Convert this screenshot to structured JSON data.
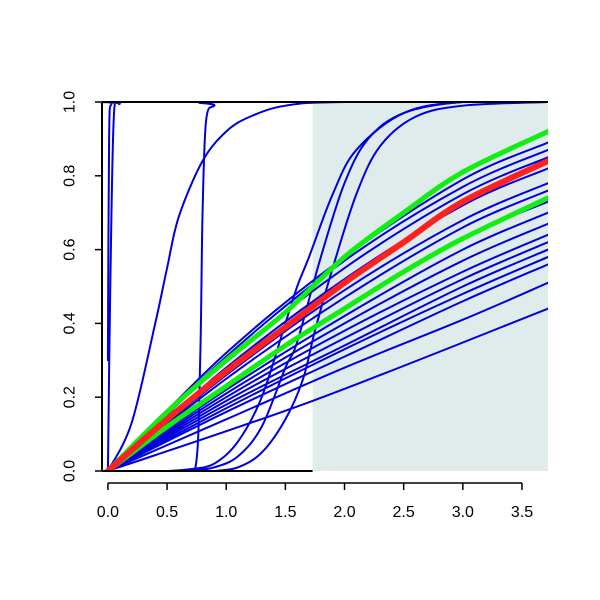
{
  "chart_data": {
    "type": "line",
    "xlim": [
      -0.05,
      3.72
    ],
    "ylim": [
      0,
      1
    ],
    "x_ticks": [
      0.0,
      0.5,
      1.0,
      1.5,
      2.0,
      2.5,
      3.0,
      3.5
    ],
    "x_tick_labels": [
      "0.0",
      "0.5",
      "1.0",
      "1.5",
      "2.0",
      "2.5",
      "3.0",
      "3.5"
    ],
    "y_ticks": [
      0.0,
      0.2,
      0.4,
      0.6,
      0.8,
      1.0
    ],
    "y_tick_labels": [
      "0.0",
      "0.2",
      "0.4",
      "0.6",
      "0.8",
      "1.0"
    ],
    "shaded_region": {
      "x": [
        1.73,
        3.72
      ],
      "y": [
        0,
        1
      ],
      "color": "#e0ecec"
    },
    "grid": false,
    "colors": {
      "simulated": "#0000dd",
      "central": "#ff2020",
      "bounds": "#11ee11"
    },
    "series": [
      {
        "group": "simulated",
        "points": [
          [
            0.0,
            0.3
          ],
          [
            0.01,
            0.9
          ],
          [
            0.03,
            0.995
          ],
          [
            0.1,
            1.0
          ],
          [
            3.72,
            1.0
          ]
        ]
      },
      {
        "group": "simulated",
        "points": [
          [
            0.0,
            0.0
          ],
          [
            0.02,
            0.5
          ],
          [
            0.05,
            0.96
          ],
          [
            0.1,
            0.995
          ],
          [
            0.2,
            1.0
          ],
          [
            3.72,
            1.0
          ]
        ]
      },
      {
        "group": "simulated",
        "points": [
          [
            0.0,
            0.0
          ],
          [
            0.2,
            0.13
          ],
          [
            0.4,
            0.4
          ],
          [
            0.5,
            0.55
          ],
          [
            0.6,
            0.69
          ],
          [
            0.8,
            0.84
          ],
          [
            1.0,
            0.92
          ],
          [
            1.2,
            0.96
          ],
          [
            1.5,
            0.99
          ],
          [
            2.0,
            1.0
          ],
          [
            3.72,
            1.0
          ]
        ]
      },
      {
        "group": "simulated",
        "points": [
          [
            0.6,
            0.0
          ],
          [
            0.74,
            0.01
          ],
          [
            0.78,
            0.3
          ],
          [
            0.8,
            0.7
          ],
          [
            0.83,
            0.95
          ],
          [
            0.9,
            0.99
          ],
          [
            1.0,
            1.0
          ],
          [
            3.72,
            1.0
          ]
        ]
      },
      {
        "group": "simulated",
        "points": [
          [
            0.5,
            0.0
          ],
          [
            0.7,
            0.005
          ],
          [
            0.9,
            0.02
          ],
          [
            1.1,
            0.08
          ],
          [
            1.3,
            0.2
          ],
          [
            1.5,
            0.4
          ],
          [
            1.6,
            0.5
          ],
          [
            1.7,
            0.58
          ],
          [
            1.9,
            0.75
          ],
          [
            2.1,
            0.87
          ],
          [
            2.5,
            0.97
          ],
          [
            3.0,
            1.0
          ],
          [
            3.72,
            1.0
          ]
        ]
      },
      {
        "group": "simulated",
        "points": [
          [
            0.7,
            0.0
          ],
          [
            0.9,
            0.01
          ],
          [
            1.1,
            0.04
          ],
          [
            1.3,
            0.12
          ],
          [
            1.5,
            0.28
          ],
          [
            1.6,
            0.35
          ],
          [
            1.8,
            0.58
          ],
          [
            2.0,
            0.78
          ],
          [
            2.2,
            0.9
          ],
          [
            2.5,
            0.97
          ],
          [
            3.0,
            1.0
          ],
          [
            3.72,
            1.0
          ]
        ]
      },
      {
        "group": "simulated",
        "points": [
          [
            0.9,
            0.0
          ],
          [
            1.1,
            0.01
          ],
          [
            1.3,
            0.05
          ],
          [
            1.5,
            0.14
          ],
          [
            1.65,
            0.25
          ],
          [
            1.75,
            0.38
          ],
          [
            1.9,
            0.55
          ],
          [
            2.1,
            0.75
          ],
          [
            2.3,
            0.88
          ],
          [
            2.6,
            0.96
          ],
          [
            3.0,
            0.99
          ],
          [
            3.72,
            1.0
          ]
        ]
      },
      {
        "group": "simulated",
        "points": [
          [
            0.0,
            0.0
          ],
          [
            1.73,
            0.19
          ],
          [
            3.72,
            0.44
          ]
        ]
      },
      {
        "group": "simulated",
        "points": [
          [
            0.0,
            0.0
          ],
          [
            1.0,
            0.14
          ],
          [
            2.0,
            0.28
          ],
          [
            3.0,
            0.41
          ],
          [
            3.72,
            0.51
          ]
        ]
      },
      {
        "group": "simulated",
        "points": [
          [
            0.0,
            0.0
          ],
          [
            1.0,
            0.16
          ],
          [
            2.0,
            0.31
          ],
          [
            3.0,
            0.46
          ],
          [
            3.72,
            0.56
          ]
        ]
      },
      {
        "group": "simulated",
        "points": [
          [
            0.0,
            0.0
          ],
          [
            1.0,
            0.17
          ],
          [
            2.0,
            0.33
          ],
          [
            3.0,
            0.48
          ],
          [
            3.72,
            0.58
          ]
        ]
      },
      {
        "group": "simulated",
        "points": [
          [
            0.0,
            0.0
          ],
          [
            1.0,
            0.18
          ],
          [
            2.0,
            0.34
          ],
          [
            3.0,
            0.5
          ],
          [
            3.72,
            0.6
          ]
        ]
      },
      {
        "group": "simulated",
        "points": [
          [
            0.0,
            0.0
          ],
          [
            1.0,
            0.19
          ],
          [
            2.0,
            0.36
          ],
          [
            3.0,
            0.52
          ],
          [
            3.72,
            0.62
          ]
        ]
      },
      {
        "group": "simulated",
        "points": [
          [
            0.0,
            0.0
          ],
          [
            1.0,
            0.2
          ],
          [
            2.0,
            0.38
          ],
          [
            3.0,
            0.54
          ],
          [
            3.72,
            0.64
          ]
        ]
      },
      {
        "group": "simulated",
        "points": [
          [
            0.0,
            0.0
          ],
          [
            1.0,
            0.21
          ],
          [
            2.0,
            0.4
          ],
          [
            3.0,
            0.57
          ],
          [
            3.72,
            0.67
          ]
        ]
      },
      {
        "group": "simulated",
        "points": [
          [
            0.0,
            0.0
          ],
          [
            1.0,
            0.22
          ],
          [
            2.0,
            0.42
          ],
          [
            3.0,
            0.6
          ],
          [
            3.72,
            0.7
          ]
        ]
      },
      {
        "group": "simulated",
        "points": [
          [
            0.0,
            0.0
          ],
          [
            1.0,
            0.23
          ],
          [
            2.0,
            0.44
          ],
          [
            3.0,
            0.63
          ],
          [
            3.72,
            0.73
          ]
        ]
      },
      {
        "group": "simulated",
        "points": [
          [
            0.0,
            0.0
          ],
          [
            1.0,
            0.25
          ],
          [
            2.0,
            0.47
          ],
          [
            3.0,
            0.66
          ],
          [
            3.72,
            0.76
          ]
        ]
      },
      {
        "group": "simulated",
        "points": [
          [
            0.0,
            0.0
          ],
          [
            1.0,
            0.26
          ],
          [
            2.0,
            0.49
          ],
          [
            3.0,
            0.68
          ],
          [
            3.72,
            0.78
          ]
        ]
      },
      {
        "group": "simulated",
        "points": [
          [
            0.0,
            0.0
          ],
          [
            1.0,
            0.28
          ],
          [
            2.0,
            0.52
          ],
          [
            3.0,
            0.72
          ],
          [
            3.72,
            0.82
          ]
        ]
      },
      {
        "group": "simulated",
        "points": [
          [
            0.0,
            0.0
          ],
          [
            1.0,
            0.3
          ],
          [
            2.0,
            0.55
          ],
          [
            3.0,
            0.75
          ],
          [
            3.72,
            0.85
          ]
        ]
      },
      {
        "group": "simulated",
        "points": [
          [
            0.0,
            0.0
          ],
          [
            1.0,
            0.31
          ],
          [
            2.0,
            0.57
          ],
          [
            3.0,
            0.77
          ],
          [
            3.72,
            0.87
          ]
        ]
      },
      {
        "group": "simulated",
        "points": [
          [
            0.0,
            0.0
          ],
          [
            1.0,
            0.32
          ],
          [
            2.0,
            0.58
          ],
          [
            3.0,
            0.79
          ],
          [
            3.72,
            0.89
          ]
        ]
      },
      {
        "group": "bounds",
        "points": [
          [
            0.0,
            0.0
          ],
          [
            0.5,
            0.16
          ],
          [
            1.0,
            0.3
          ],
          [
            1.5,
            0.43
          ],
          [
            2.0,
            0.58
          ],
          [
            2.5,
            0.7
          ],
          [
            3.0,
            0.81
          ],
          [
            3.72,
            0.92
          ]
        ]
      },
      {
        "group": "bounds",
        "points": [
          [
            0.0,
            0.0
          ],
          [
            0.5,
            0.12
          ],
          [
            1.0,
            0.23
          ],
          [
            1.5,
            0.34
          ],
          [
            2.0,
            0.44
          ],
          [
            2.5,
            0.54
          ],
          [
            3.0,
            0.63
          ],
          [
            3.72,
            0.74
          ]
        ]
      },
      {
        "group": "central",
        "points": [
          [
            0.0,
            0.0
          ],
          [
            0.5,
            0.14
          ],
          [
            1.0,
            0.27
          ],
          [
            1.5,
            0.39
          ],
          [
            2.0,
            0.51
          ],
          [
            2.5,
            0.62
          ],
          [
            3.0,
            0.73
          ],
          [
            3.72,
            0.84
          ]
        ]
      }
    ]
  }
}
